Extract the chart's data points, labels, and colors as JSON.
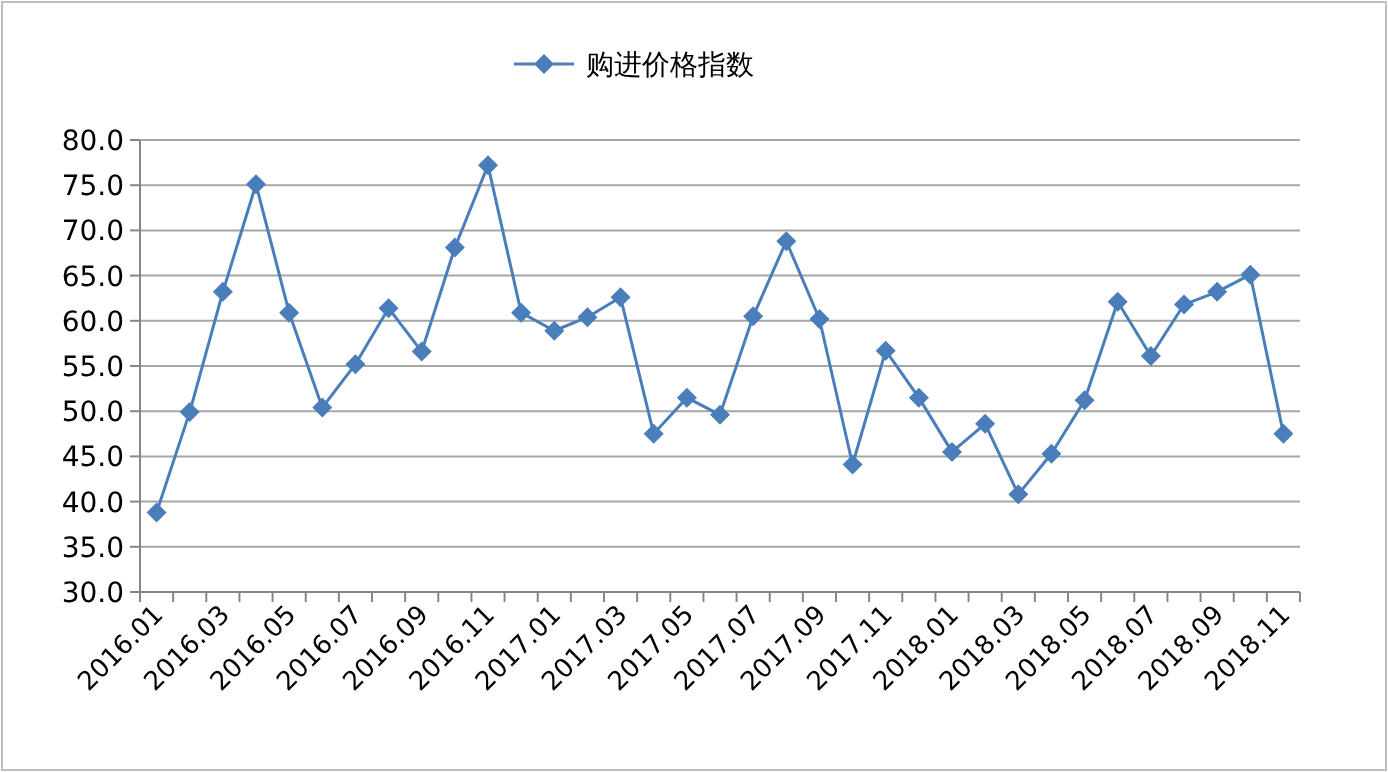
{
  "chart_data": {
    "type": "line",
    "categories": [
      "2016.01",
      null,
      "2016.03",
      null,
      "2016.05",
      null,
      "2016.07",
      null,
      "2016.09",
      null,
      "2016.11",
      null,
      "2017.01",
      null,
      "2017.03",
      null,
      "2017.05",
      null,
      "2017.07",
      null,
      "2017.09",
      null,
      "2017.11",
      null,
      "2018.01",
      null,
      "2018.03",
      null,
      "2018.05",
      null,
      "2018.07",
      null,
      "2018.09",
      null,
      "2018.11"
    ],
    "series": [
      {
        "name": "购进价格指数",
        "color": "#4a7ebb",
        "values": [
          38.8,
          49.9,
          63.2,
          75.1,
          60.9,
          50.4,
          55.2,
          61.4,
          56.6,
          68.1,
          77.2,
          60.9,
          58.9,
          60.4,
          62.6,
          47.5,
          51.5,
          49.6,
          60.5,
          68.8,
          60.2,
          44.1,
          56.7,
          51.5,
          45.5,
          48.6,
          40.8,
          45.3,
          51.2,
          62.1,
          56.1,
          61.8,
          63.2,
          65.1,
          47.5
        ]
      }
    ],
    "ylim": [
      30,
      80
    ],
    "yticks": [
      {
        "value": 30,
        "label": "30.0"
      },
      {
        "value": 35,
        "label": "35.0"
      },
      {
        "value": 40,
        "label": "40.0"
      },
      {
        "value": 45,
        "label": "45.0"
      },
      {
        "value": 50,
        "label": "50.0"
      },
      {
        "value": 55,
        "label": "55.0"
      },
      {
        "value": 60,
        "label": "60.0"
      },
      {
        "value": 65,
        "label": "65.0"
      },
      {
        "value": 70,
        "label": "70.0"
      },
      {
        "value": 75,
        "label": "75.0"
      },
      {
        "value": 80,
        "label": "80.0"
      }
    ],
    "grid": "y",
    "legend": "top",
    "marker": "diamond",
    "line_style": "solid"
  }
}
